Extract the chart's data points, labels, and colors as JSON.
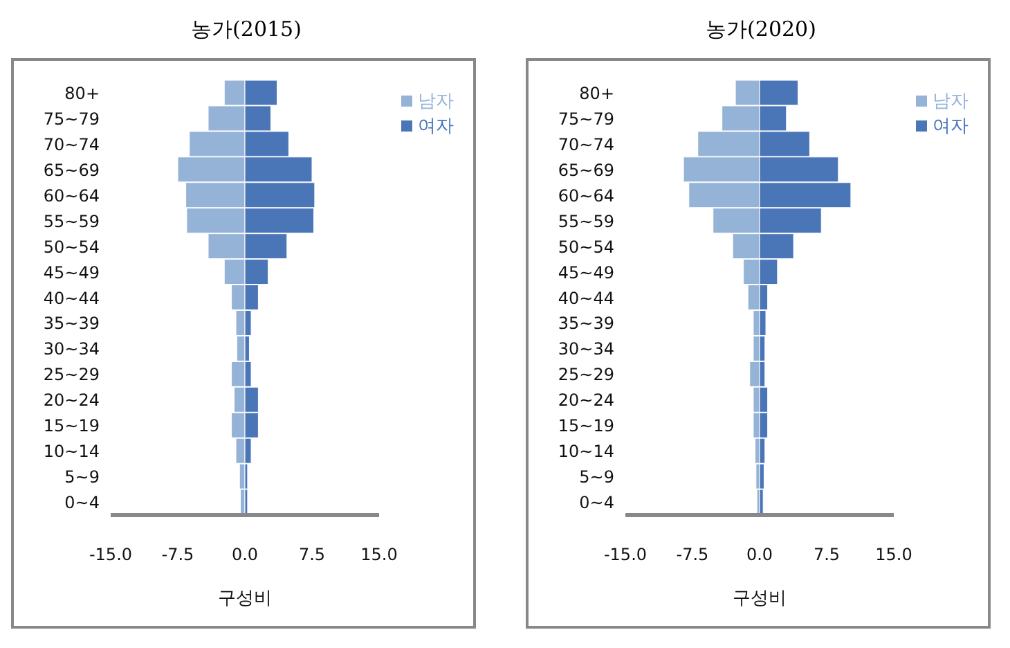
{
  "chart_data": [
    {
      "type": "bar",
      "orientation": "horizontal",
      "stacked": true,
      "title": "농가(2015)",
      "xlabel": "구성비",
      "categories": [
        "80+",
        "75~79",
        "70~74",
        "65~69",
        "60~64",
        "55~59",
        "50~54",
        "45~49",
        "40~44",
        "35~39",
        "30~34",
        "25~29",
        "20~24",
        "15~19",
        "10~14",
        "5~9",
        "0~4"
      ],
      "series": [
        {
          "name": "남자",
          "color": "#95b3d7",
          "values": [
            -2.3,
            -4.1,
            -6.2,
            -7.5,
            -6.6,
            -6.5,
            -4.1,
            -2.3,
            -1.5,
            -1.0,
            -0.9,
            -1.5,
            -1.2,
            -1.5,
            -1.0,
            -0.6,
            -0.5
          ]
        },
        {
          "name": "여자",
          "color": "#4a76b8",
          "values": [
            3.6,
            2.9,
            4.9,
            7.5,
            7.8,
            7.7,
            4.7,
            2.6,
            1.5,
            0.7,
            0.5,
            0.7,
            1.5,
            1.5,
            0.7,
            0.3,
            0.3
          ]
        }
      ],
      "xlim": [
        -15,
        15
      ],
      "xticks": [
        {
          "value": -15,
          "label": "-15.0"
        },
        {
          "value": -7.5,
          "label": "-7.5"
        },
        {
          "value": 0,
          "label": "0.0"
        },
        {
          "value": 7.5,
          "label": "7.5"
        },
        {
          "value": 15,
          "label": "15.0"
        }
      ],
      "grid": false,
      "legend": "top right"
    },
    {
      "type": "bar",
      "orientation": "horizontal",
      "stacked": true,
      "title": "농가(2020)",
      "xlabel": "구성비",
      "categories": [
        "80+",
        "75~79",
        "70~74",
        "65~69",
        "60~64",
        "55~59",
        "50~54",
        "45~49",
        "40~44",
        "35~39",
        "30~34",
        "25~29",
        "20~24",
        "15~19",
        "10~14",
        "5~9",
        "0~4"
      ],
      "series": [
        {
          "name": "남자",
          "color": "#95b3d7",
          "values": [
            -2.7,
            -4.2,
            -6.9,
            -8.5,
            -7.9,
            -5.2,
            -3.0,
            -1.8,
            -1.3,
            -0.7,
            -0.7,
            -1.1,
            -0.7,
            -0.7,
            -0.5,
            -0.4,
            -0.3
          ]
        },
        {
          "name": "여자",
          "color": "#4a76b8",
          "values": [
            4.3,
            3.0,
            5.6,
            8.8,
            10.2,
            6.9,
            3.8,
            2.0,
            0.9,
            0.7,
            0.6,
            0.6,
            0.9,
            0.9,
            0.6,
            0.5,
            0.4
          ]
        }
      ],
      "xlim": [
        -15,
        15
      ],
      "xticks": [
        {
          "value": -15,
          "label": "-15.0"
        },
        {
          "value": -7.5,
          "label": "-7.5"
        },
        {
          "value": 0,
          "label": "0.0"
        },
        {
          "value": 7.5,
          "label": "7.5"
        },
        {
          "value": 15,
          "label": "15.0"
        }
      ],
      "grid": false,
      "legend": "top right"
    }
  ]
}
